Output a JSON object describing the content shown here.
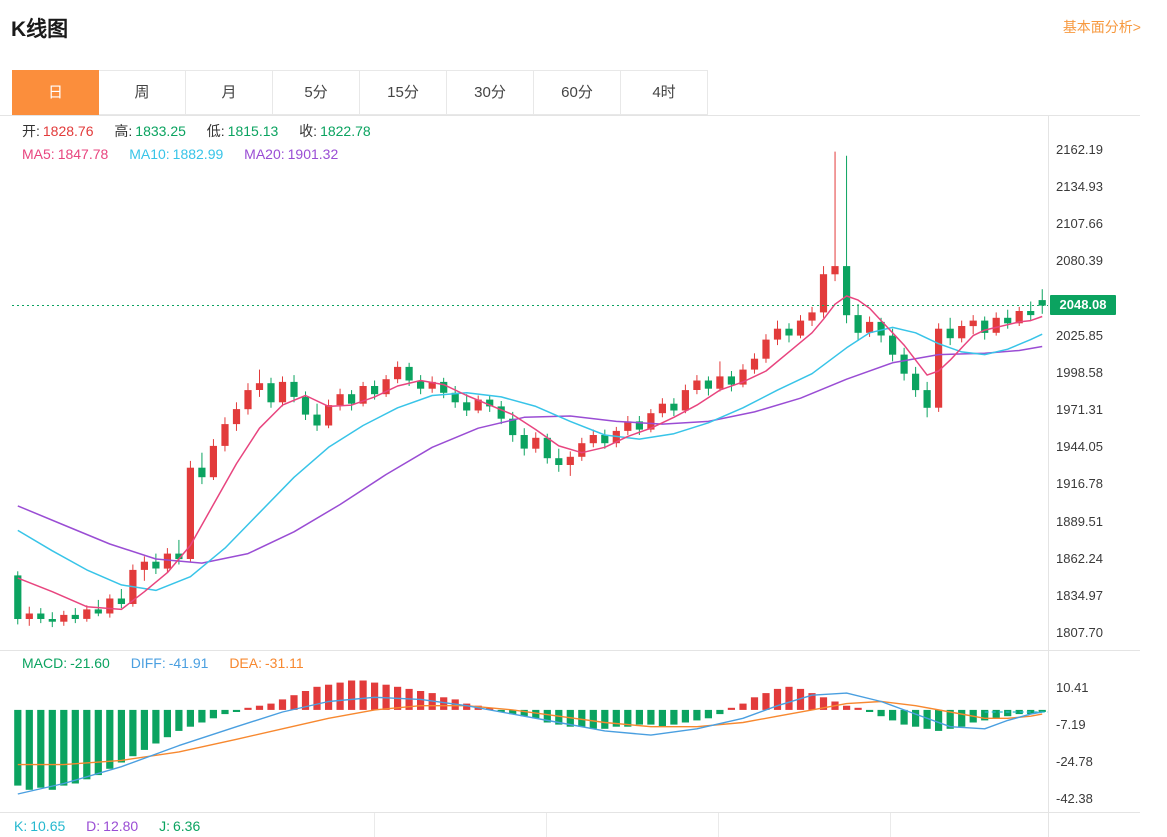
{
  "page": {
    "title": "K线图",
    "fundamental_link": "基本面分析>"
  },
  "tabs": {
    "active_index": 0,
    "items": [
      {
        "label": "日"
      },
      {
        "label": "周"
      },
      {
        "label": "月"
      },
      {
        "label": "5分"
      },
      {
        "label": "15分"
      },
      {
        "label": "30分"
      },
      {
        "label": "60分"
      },
      {
        "label": "4时"
      }
    ]
  },
  "legend": {
    "ohlc": [
      {
        "label": "开:",
        "value": "1828.76",
        "color": "#e23b3b"
      },
      {
        "label": "高:",
        "value": "1833.25",
        "color": "#0ba360"
      },
      {
        "label": "低:",
        "value": "1815.13",
        "color": "#0ba360"
      },
      {
        "label": "收:",
        "value": "1822.78",
        "color": "#0ba360"
      }
    ],
    "ma": [
      {
        "label": "MA5:",
        "value": "1847.78",
        "color": "#e8457f"
      },
      {
        "label": "MA10:",
        "value": "1882.99",
        "color": "#38c4e8"
      },
      {
        "label": "MA20:",
        "value": "1901.32",
        "color": "#9a4dd4"
      }
    ],
    "macd": [
      {
        "label": "MACD:",
        "value": "-21.60",
        "color": "#0ba360"
      },
      {
        "label": "DIFF:",
        "value": "-41.91",
        "color": "#4a9fe0"
      },
      {
        "label": "DEA:",
        "value": "-31.11",
        "color": "#f7882f"
      }
    ],
    "kdj": [
      {
        "label": "K:",
        "value": "10.65",
        "color": "#25b8cf"
      },
      {
        "label": "D:",
        "value": "12.80",
        "color": "#9a4dd4"
      },
      {
        "label": "J:",
        "value": "6.36",
        "color": "#0ba360"
      }
    ]
  },
  "colors": {
    "up": "#e23b3b",
    "down": "#0ba360",
    "badge": "#0ba360",
    "ma5": "#e8457f",
    "ma10": "#38c4e8",
    "ma20": "#9a4dd4",
    "diff": "#4a9fe0",
    "dea": "#f7882f",
    "dash": "#25b8cf"
  },
  "chart_data": {
    "type": "candlestick",
    "price_ticks_top": [
      "2162.19",
      "2134.93",
      "2107.66",
      "2080.39"
    ],
    "price_ticks_bottom": [
      "2025.85",
      "1998.58",
      "1971.31",
      "1944.05",
      "1916.78",
      "1889.51",
      "1862.24",
      "1834.97",
      "1807.70"
    ],
    "price_axis_range": [
      1807.7,
      2162.19
    ],
    "current_price": 2048.08,
    "current_price_label": "2048.08",
    "candles": [
      [
        1850,
        1853,
        1814,
        1818
      ],
      [
        1818,
        1827,
        1813,
        1822
      ],
      [
        1822,
        1826,
        1815,
        1818
      ],
      [
        1818,
        1823,
        1812,
        1816
      ],
      [
        1816,
        1824,
        1813,
        1821
      ],
      [
        1821,
        1826,
        1815,
        1818
      ],
      [
        1818,
        1828,
        1816,
        1825
      ],
      [
        1825,
        1832,
        1820,
        1822
      ],
      [
        1822,
        1836,
        1819,
        1833
      ],
      [
        1833,
        1840,
        1826,
        1829
      ],
      [
        1829,
        1858,
        1827,
        1854
      ],
      [
        1854,
        1864,
        1846,
        1860
      ],
      [
        1860,
        1866,
        1851,
        1855
      ],
      [
        1855,
        1870,
        1852,
        1866
      ],
      [
        1866,
        1876,
        1858,
        1862
      ],
      [
        1862,
        1934,
        1860,
        1929
      ],
      [
        1929,
        1940,
        1917,
        1922
      ],
      [
        1922,
        1950,
        1920,
        1945
      ],
      [
        1945,
        1966,
        1941,
        1961
      ],
      [
        1961,
        1977,
        1956,
        1972
      ],
      [
        1972,
        1991,
        1968,
        1986
      ],
      [
        1986,
        2001,
        1981,
        1991
      ],
      [
        1991,
        1995,
        1973,
        1977
      ],
      [
        1977,
        1996,
        1974,
        1992
      ],
      [
        1992,
        1997,
        1977,
        1981
      ],
      [
        1981,
        1985,
        1964,
        1968
      ],
      [
        1968,
        1976,
        1956,
        1960
      ],
      [
        1960,
        1979,
        1958,
        1975
      ],
      [
        1975,
        1987,
        1971,
        1983
      ],
      [
        1983,
        1986,
        1971,
        1976
      ],
      [
        1976,
        1992,
        1974,
        1989
      ],
      [
        1989,
        1993,
        1979,
        1983
      ],
      [
        1983,
        1997,
        1981,
        1994
      ],
      [
        1994,
        2007,
        1991,
        2003
      ],
      [
        2003,
        2006,
        1989,
        1993
      ],
      [
        1993,
        1997,
        1983,
        1987
      ],
      [
        1987,
        1996,
        1984,
        1992
      ],
      [
        1992,
        1995,
        1980,
        1984
      ],
      [
        1984,
        1989,
        1973,
        1977
      ],
      [
        1977,
        1983,
        1967,
        1971
      ],
      [
        1971,
        1982,
        1969,
        1979
      ],
      [
        1979,
        1982,
        1970,
        1974
      ],
      [
        1974,
        1978,
        1961,
        1965
      ],
      [
        1965,
        1970,
        1948,
        1953
      ],
      [
        1953,
        1958,
        1938,
        1943
      ],
      [
        1943,
        1955,
        1940,
        1951
      ],
      [
        1951,
        1954,
        1932,
        1936
      ],
      [
        1936,
        1943,
        1926,
        1931
      ],
      [
        1931,
        1941,
        1923,
        1937
      ],
      [
        1937,
        1951,
        1934,
        1947
      ],
      [
        1947,
        1957,
        1944,
        1953
      ],
      [
        1953,
        1957,
        1943,
        1947
      ],
      [
        1947,
        1959,
        1944,
        1956
      ],
      [
        1956,
        1967,
        1953,
        1963
      ],
      [
        1963,
        1967,
        1953,
        1957
      ],
      [
        1957,
        1972,
        1955,
        1969
      ],
      [
        1969,
        1980,
        1966,
        1976
      ],
      [
        1976,
        1980,
        1967,
        1971
      ],
      [
        1971,
        1990,
        1969,
        1986
      ],
      [
        1986,
        1997,
        1983,
        1993
      ],
      [
        1993,
        1996,
        1982,
        1987
      ],
      [
        1987,
        2007,
        1985,
        1996
      ],
      [
        1996,
        2000,
        1985,
        1990
      ],
      [
        1990,
        2005,
        1988,
        2001
      ],
      [
        2001,
        2013,
        1998,
        2009
      ],
      [
        2009,
        2027,
        2006,
        2023
      ],
      [
        2023,
        2037,
        2019,
        2031
      ],
      [
        2031,
        2035,
        2021,
        2026
      ],
      [
        2026,
        2041,
        2024,
        2037
      ],
      [
        2037,
        2047,
        2033,
        2043
      ],
      [
        2043,
        2077,
        2039,
        2071
      ],
      [
        2071,
        2161,
        2066,
        2077
      ],
      [
        2077,
        2158,
        2035,
        2041
      ],
      [
        2041,
        2049,
        2022,
        2028
      ],
      [
        2028,
        2040,
        2025,
        2036
      ],
      [
        2036,
        2039,
        2021,
        2026
      ],
      [
        2026,
        2031,
        2007,
        2012
      ],
      [
        2012,
        2017,
        1993,
        1998
      ],
      [
        1998,
        2003,
        1981,
        1986
      ],
      [
        1986,
        1992,
        1966,
        1973
      ],
      [
        1973,
        2035,
        1970,
        2031
      ],
      [
        2031,
        2039,
        2019,
        2024
      ],
      [
        2024,
        2037,
        2021,
        2033
      ],
      [
        2033,
        2041,
        2027,
        2037
      ],
      [
        2037,
        2040,
        2023,
        2028
      ],
      [
        2028,
        2043,
        2026,
        2039
      ],
      [
        2039,
        2045,
        2031,
        2035
      ],
      [
        2035,
        2047,
        2033,
        2044
      ],
      [
        2044,
        2051,
        2037,
        2041
      ],
      [
        2052,
        2060,
        2042,
        2048
      ]
    ],
    "ma5": [
      [
        1,
        1848
      ],
      [
        4,
        1838
      ],
      [
        7,
        1827
      ],
      [
        10,
        1825
      ],
      [
        12,
        1838
      ],
      [
        14,
        1852
      ],
      [
        16,
        1872
      ],
      [
        18,
        1902
      ],
      [
        20,
        1932
      ],
      [
        22,
        1958
      ],
      [
        24,
        1975
      ],
      [
        26,
        1982
      ],
      [
        28,
        1974
      ],
      [
        30,
        1975
      ],
      [
        32,
        1981
      ],
      [
        34,
        1989
      ],
      [
        36,
        1993
      ],
      [
        38,
        1990
      ],
      [
        40,
        1982
      ],
      [
        42,
        1975
      ],
      [
        44,
        1968
      ],
      [
        46,
        1957
      ],
      [
        48,
        1945
      ],
      [
        50,
        1940
      ],
      [
        52,
        1944
      ],
      [
        54,
        1952
      ],
      [
        56,
        1958
      ],
      [
        58,
        1966
      ],
      [
        60,
        1975
      ],
      [
        62,
        1986
      ],
      [
        64,
        1992
      ],
      [
        66,
        2000
      ],
      [
        68,
        2014
      ],
      [
        70,
        2028
      ],
      [
        71,
        2038
      ],
      [
        72,
        2049
      ],
      [
        73,
        2055
      ],
      [
        74,
        2052
      ],
      [
        75,
        2046
      ],
      [
        76,
        2037
      ],
      [
        77,
        2028
      ],
      [
        78,
        2019
      ],
      [
        79,
        2008
      ],
      [
        80,
        1997
      ],
      [
        81,
        2000
      ],
      [
        82,
        2008
      ],
      [
        83,
        2017
      ],
      [
        84,
        2026
      ],
      [
        85,
        2030
      ],
      [
        86,
        2032
      ],
      [
        87,
        2034
      ],
      [
        88,
        2036
      ],
      [
        89,
        2037
      ],
      [
        90,
        2040
      ]
    ],
    "ma10": [
      [
        1,
        1883
      ],
      [
        4,
        1868
      ],
      [
        7,
        1854
      ],
      [
        10,
        1843
      ],
      [
        13,
        1839
      ],
      [
        16,
        1849
      ],
      [
        19,
        1870
      ],
      [
        22,
        1896
      ],
      [
        25,
        1922
      ],
      [
        28,
        1944
      ],
      [
        31,
        1960
      ],
      [
        34,
        1973
      ],
      [
        37,
        1982
      ],
      [
        40,
        1984
      ],
      [
        43,
        1981
      ],
      [
        46,
        1974
      ],
      [
        49,
        1963
      ],
      [
        52,
        1953
      ],
      [
        55,
        1950
      ],
      [
        58,
        1954
      ],
      [
        61,
        1962
      ],
      [
        64,
        1973
      ],
      [
        67,
        1986
      ],
      [
        70,
        1998
      ],
      [
        73,
        2017
      ],
      [
        75,
        2028
      ],
      [
        77,
        2032
      ],
      [
        79,
        2028
      ],
      [
        81,
        2020
      ],
      [
        83,
        2014
      ],
      [
        85,
        2012
      ],
      [
        87,
        2016
      ],
      [
        89,
        2023
      ],
      [
        90,
        2027
      ]
    ],
    "ma20": [
      [
        1,
        1901
      ],
      [
        5,
        1887
      ],
      [
        9,
        1873
      ],
      [
        13,
        1862
      ],
      [
        17,
        1859
      ],
      [
        21,
        1866
      ],
      [
        25,
        1882
      ],
      [
        29,
        1902
      ],
      [
        33,
        1924
      ],
      [
        37,
        1944
      ],
      [
        41,
        1958
      ],
      [
        45,
        1966
      ],
      [
        49,
        1967
      ],
      [
        53,
        1963
      ],
      [
        57,
        1961
      ],
      [
        61,
        1963
      ],
      [
        65,
        1970
      ],
      [
        69,
        1980
      ],
      [
        73,
        1994
      ],
      [
        77,
        2006
      ],
      [
        81,
        2012
      ],
      [
        85,
        2013
      ],
      [
        88,
        2015
      ],
      [
        90,
        2018
      ]
    ],
    "macd_ticks": [
      "10.41",
      "-7.19",
      "-24.78",
      "-42.38"
    ],
    "macd_axis_range": [
      -42.38,
      10.41
    ],
    "macd_histogram": [
      -36,
      -38,
      -37,
      -38,
      -36,
      -35,
      -33,
      -31,
      -28,
      -25,
      -22,
      -19,
      -16,
      -13,
      -10,
      -8,
      -6,
      -4,
      -2,
      -1,
      1,
      2,
      3,
      5,
      7,
      9,
      11,
      12,
      13,
      14,
      14,
      13,
      12,
      11,
      10,
      9,
      8,
      6,
      5,
      3,
      2,
      1,
      -1,
      -2,
      -3,
      -4,
      -6,
      -7,
      -8,
      -8,
      -9,
      -9,
      -8,
      -8,
      -7,
      -7,
      -8,
      -7,
      -6,
      -5,
      -4,
      -2,
      1,
      3,
      6,
      8,
      10,
      11,
      10,
      8,
      6,
      4,
      2,
      1,
      -1,
      -3,
      -5,
      -7,
      -8,
      -9,
      -10,
      -9,
      -8,
      -6,
      -5,
      -4,
      -3,
      -2,
      -2,
      -1
    ],
    "diff_line": [
      [
        1,
        -40
      ],
      [
        5,
        -35
      ],
      [
        10,
        -27
      ],
      [
        15,
        -17
      ],
      [
        20,
        -8
      ],
      [
        24,
        -1
      ],
      [
        28,
        4
      ],
      [
        32,
        6
      ],
      [
        36,
        5
      ],
      [
        40,
        2
      ],
      [
        44,
        -2
      ],
      [
        48,
        -6
      ],
      [
        52,
        -10
      ],
      [
        56,
        -12
      ],
      [
        60,
        -9
      ],
      [
        64,
        -4
      ],
      [
        67,
        2
      ],
      [
        70,
        7
      ],
      [
        73,
        8
      ],
      [
        76,
        4
      ],
      [
        79,
        -2
      ],
      [
        82,
        -8
      ],
      [
        85,
        -9
      ],
      [
        87,
        -5
      ],
      [
        89,
        -2
      ],
      [
        90,
        -1
      ]
    ],
    "dea_line": [
      [
        1,
        -26
      ],
      [
        5,
        -26
      ],
      [
        10,
        -24
      ],
      [
        15,
        -20
      ],
      [
        20,
        -14
      ],
      [
        24,
        -9
      ],
      [
        28,
        -4
      ],
      [
        32,
        0
      ],
      [
        36,
        2
      ],
      [
        40,
        2
      ],
      [
        44,
        0
      ],
      [
        48,
        -3
      ],
      [
        52,
        -6
      ],
      [
        56,
        -8
      ],
      [
        60,
        -8
      ],
      [
        64,
        -6
      ],
      [
        67,
        -3
      ],
      [
        70,
        0
      ],
      [
        73,
        3
      ],
      [
        76,
        4
      ],
      [
        79,
        2
      ],
      [
        82,
        -1
      ],
      [
        85,
        -4
      ],
      [
        87,
        -4
      ],
      [
        89,
        -3
      ],
      [
        90,
        -2
      ]
    ],
    "dash_level": -1
  }
}
